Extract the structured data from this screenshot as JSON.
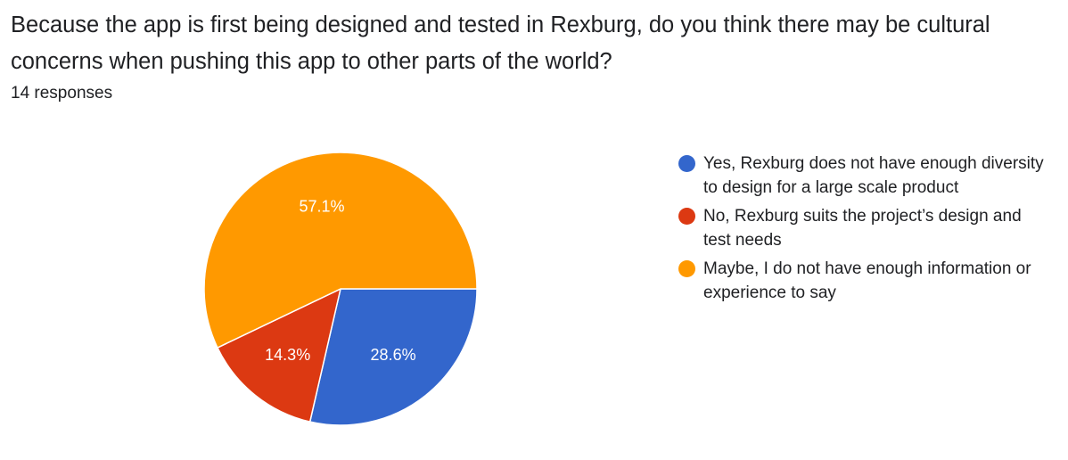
{
  "question": "Because the app is first being designed and tested in Rexburg, do you think there may be cultural concerns when pushing this app to other parts of the world?",
  "response_count": "14 responses",
  "chart_data": {
    "type": "pie",
    "categories": [
      "Yes, Rexburg does not have enough diversity to design for a large scale product",
      "No, Rexburg suits the project’s design and test needs",
      "Maybe, I do not have enough information or experience to say"
    ],
    "values": [
      28.6,
      14.3,
      57.1
    ],
    "labels": [
      "28.6%",
      "14.3%",
      "57.1%"
    ],
    "colors": [
      "#3366cc",
      "#dc3912",
      "#ff9900"
    ],
    "legend_position": "right"
  }
}
